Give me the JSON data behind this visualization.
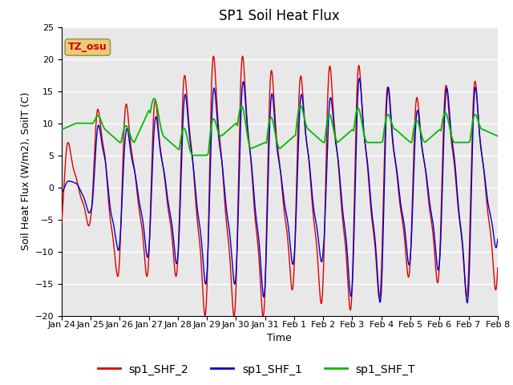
{
  "title": "SP1 Soil Heat Flux",
  "xlabel": "Time",
  "ylabel": "Soil Heat Flux (W/m2), SoilT (C)",
  "ylim": [
    -20,
    25
  ],
  "annotation_text": "TZ_osu",
  "annotation_color": "#cc0000",
  "annotation_bg": "#eecc77",
  "annotation_border": "#999955",
  "background_color": "#e8e8e8",
  "plot_bg_light": "#f0f0f0",
  "plot_bg_dark": "#e0e0e0",
  "grid_color": "#ffffff",
  "line_colors": {
    "sp1_SHF_2": "#dd0000",
    "sp1_SHF_1": "#0000cc",
    "sp1_SHF_T": "#00bb00"
  },
  "legend_labels": [
    "sp1_SHF_2",
    "sp1_SHF_1",
    "sp1_SHF_T"
  ],
  "xtick_labels": [
    "Jan 24",
    "Jan 25",
    "Jan 26",
    "Jan 27",
    "Jan 28",
    "Jan 29",
    "Jan 30",
    "Jan 31",
    "Feb 1",
    "Feb 2",
    "Feb 3",
    "Feb 4",
    "Feb 5",
    "Feb 6",
    "Feb 7",
    "Feb 8"
  ],
  "ytick_values": [
    -20,
    -15,
    -10,
    -5,
    0,
    5,
    10,
    15,
    20,
    25
  ],
  "title_fontsize": 12,
  "axis_label_fontsize": 9,
  "tick_fontsize": 8,
  "legend_fontsize": 10
}
